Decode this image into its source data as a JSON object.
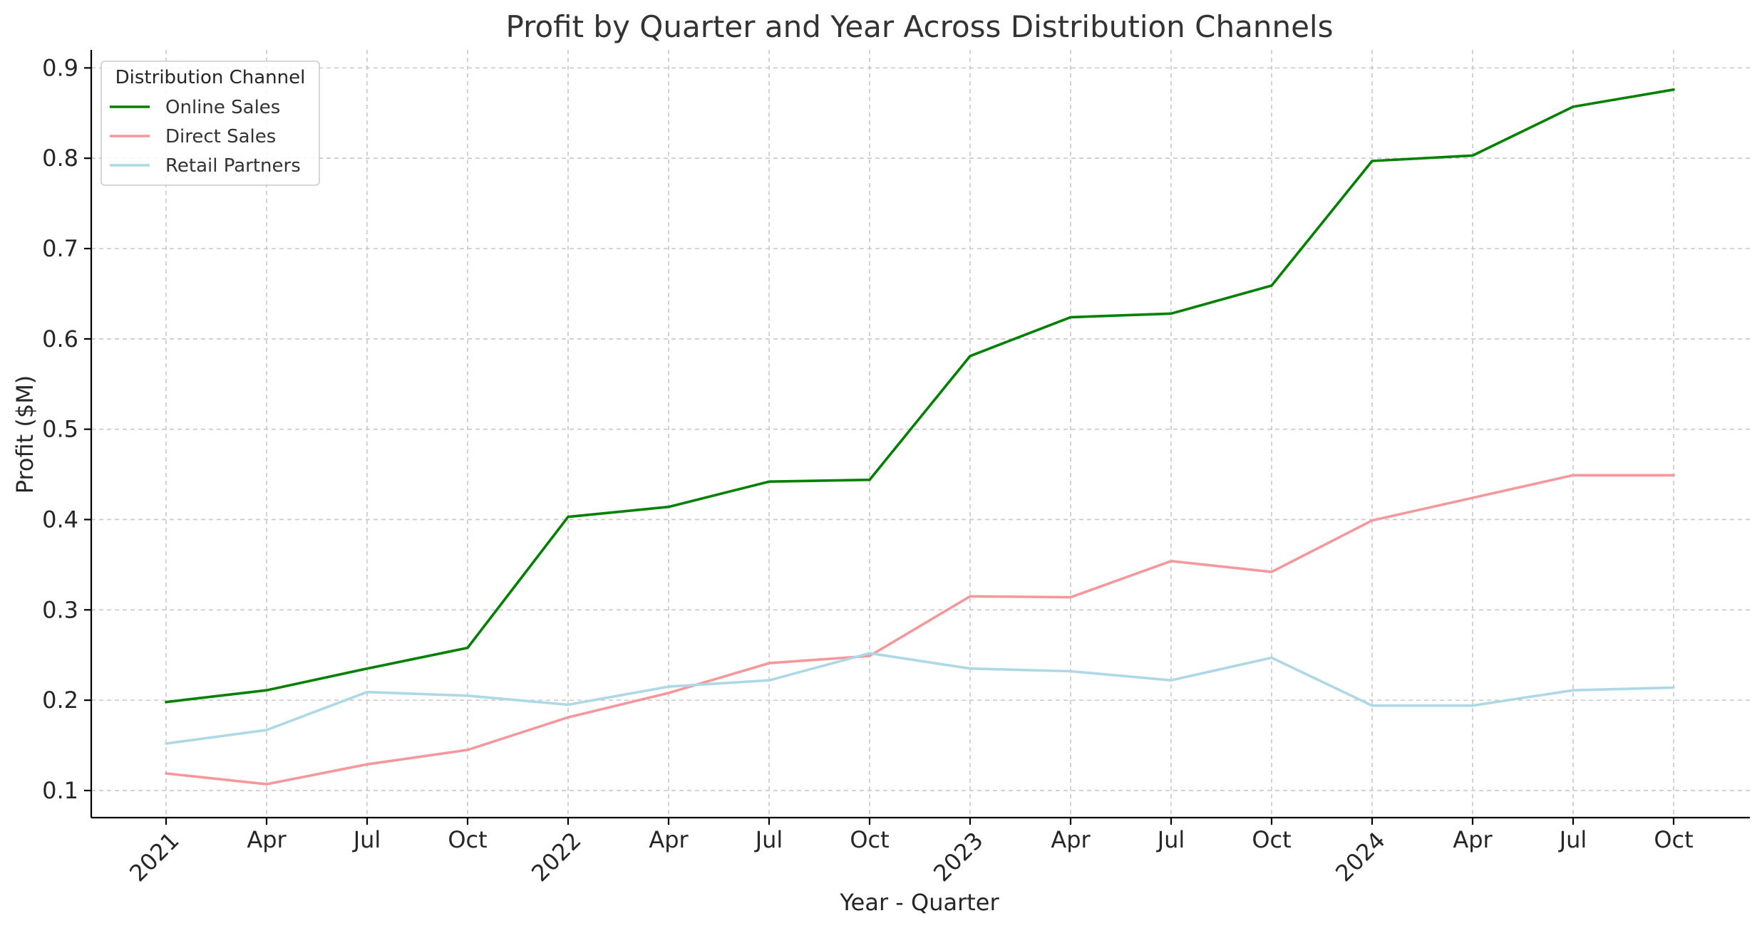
{
  "chart_data": {
    "type": "line",
    "title": "Profit by Quarter and Year Across Distribution Channels",
    "xlabel": "Year - Quarter",
    "ylabel": "Profit ($M)",
    "categories": [
      "2021-Q1",
      "2021-Q2",
      "2021-Q3",
      "2021-Q4",
      "2022-Q1",
      "2022-Q2",
      "2022-Q3",
      "2022-Q4",
      "2023-Q1",
      "2023-Q2",
      "2023-Q3",
      "2023-Q4",
      "2024-Q1",
      "2024-Q2",
      "2024-Q3",
      "2024-Q4"
    ],
    "x_tick_labels": [
      "2021",
      "Apr",
      "Jul",
      "Oct",
      "2022",
      "Apr",
      "Jul",
      "Oct",
      "2023",
      "Apr",
      "Jul",
      "Oct",
      "2024",
      "Apr",
      "Jul",
      "Oct"
    ],
    "y_ticks": [
      "0.1",
      "0.2",
      "0.3",
      "0.4",
      "0.5",
      "0.6",
      "0.7",
      "0.8",
      "0.9"
    ],
    "ylim": [
      0.07,
      0.92
    ],
    "grid": true,
    "legend": {
      "title": "Distribution Channel",
      "position": "top-left"
    },
    "series": [
      {
        "name": "Online Sales",
        "color": "#008000",
        "values": [
          0.198,
          0.211,
          0.235,
          0.258,
          0.403,
          0.414,
          0.442,
          0.444,
          0.581,
          0.624,
          0.628,
          0.659,
          0.797,
          0.803,
          0.857,
          0.876
        ]
      },
      {
        "name": "Direct Sales",
        "color": "#f4989c",
        "values": [
          0.119,
          0.107,
          0.129,
          0.145,
          0.181,
          0.208,
          0.241,
          0.249,
          0.315,
          0.314,
          0.354,
          0.342,
          0.399,
          0.424,
          0.449,
          0.449
        ]
      },
      {
        "name": "Retail Partners",
        "color": "#add8e6",
        "values": [
          0.152,
          0.167,
          0.209,
          0.205,
          0.195,
          0.215,
          0.222,
          0.252,
          0.235,
          0.232,
          0.222,
          0.247,
          0.194,
          0.194,
          0.211,
          0.214
        ]
      }
    ]
  }
}
